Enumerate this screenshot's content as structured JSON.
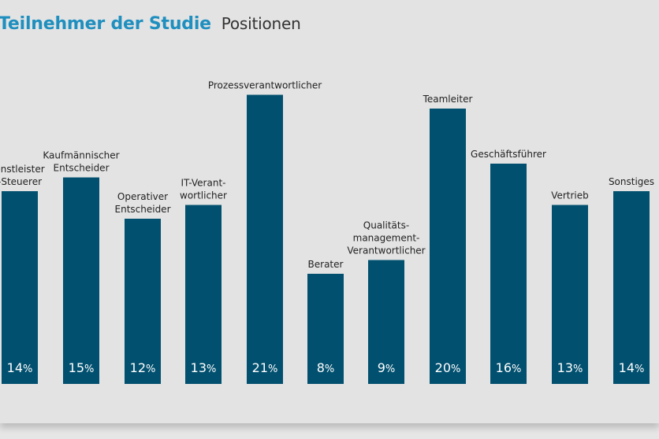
{
  "header": {
    "title": "Teilnehmer der Studie",
    "subtitle": "Positionen"
  },
  "colors": {
    "bar": "#02506f",
    "title": "#1f8fbf"
  },
  "chart_data": {
    "type": "bar",
    "title": "Teilnehmer der Studie Positionen",
    "categories": [
      [
        "enstleister",
        "-Steuerer"
      ],
      [
        "Kaufmännischer",
        "Entscheider"
      ],
      [
        "Operativer",
        "Entscheider"
      ],
      [
        "IT-Verant-",
        "wortlicher"
      ],
      [
        "Prozessverantwortlicher"
      ],
      [
        "Berater"
      ],
      [
        "Qualitäts-",
        "management-",
        "Verantwortlicher"
      ],
      [
        "Teamleiter"
      ],
      [
        "Geschäftsführer"
      ],
      [
        "Vertrieb"
      ],
      [
        "Sonstiges"
      ]
    ],
    "values": [
      14,
      15,
      12,
      13,
      21,
      8,
      9,
      20,
      16,
      13,
      14
    ],
    "value_suffix": "%",
    "xlabel": "",
    "ylabel": "",
    "grid": false
  }
}
